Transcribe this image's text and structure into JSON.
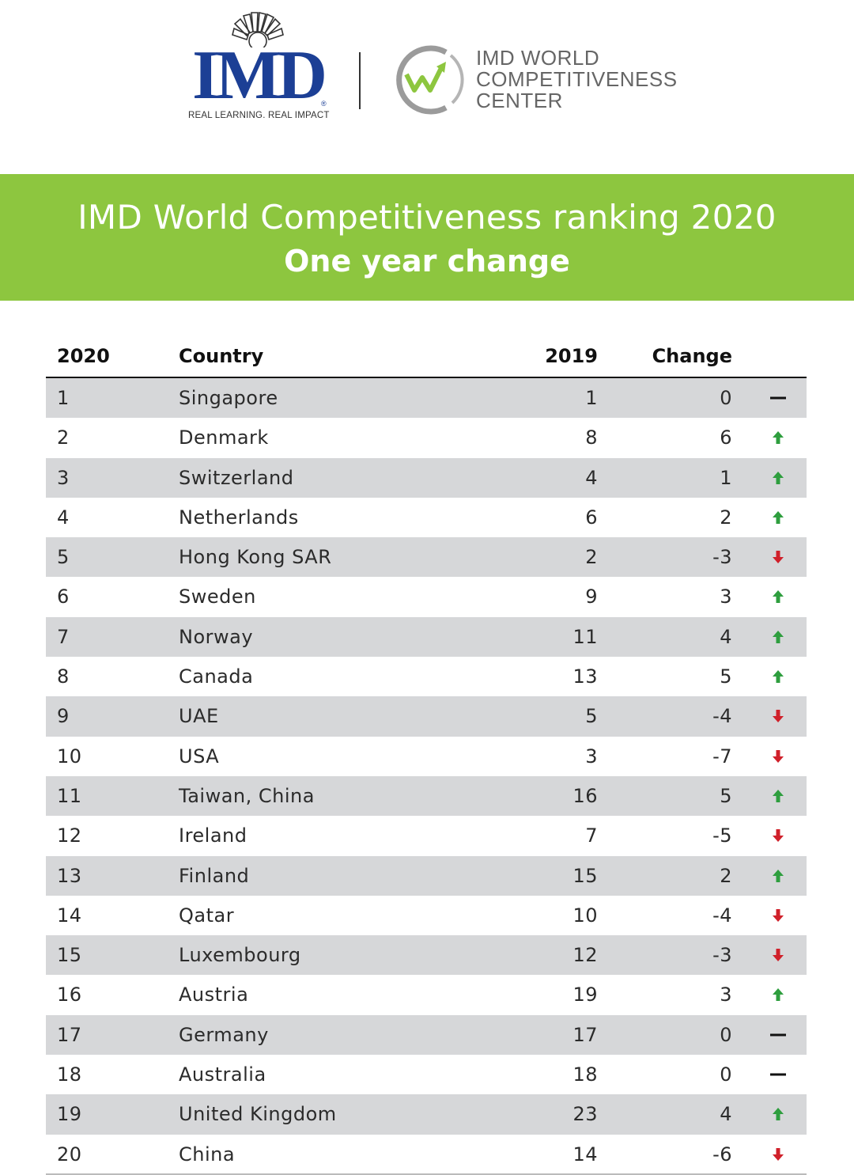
{
  "logos": {
    "imd_wordmark": "IMD",
    "imd_tagline": "REAL LEARNING. REAL IMPACT",
    "wcc_lines": [
      "IMD WORLD",
      "COMPETITIVENESS",
      "CENTER"
    ]
  },
  "banner": {
    "title": "IMD World Competitiveness ranking 2020",
    "subtitle": "One year change",
    "color": "#8dc63f"
  },
  "table": {
    "headers": {
      "rank_2020": "2020",
      "country": "Country",
      "rank_2019": "2019",
      "change": "Change"
    },
    "rows": [
      {
        "rank_2020": "1",
        "country": "Singapore",
        "rank_2019": "1",
        "change": "0",
        "trend": "same"
      },
      {
        "rank_2020": "2",
        "country": "Denmark",
        "rank_2019": "8",
        "change": "6",
        "trend": "up"
      },
      {
        "rank_2020": "3",
        "country": "Switzerland",
        "rank_2019": "4",
        "change": "1",
        "trend": "up"
      },
      {
        "rank_2020": "4",
        "country": "Netherlands",
        "rank_2019": "6",
        "change": "2",
        "trend": "up"
      },
      {
        "rank_2020": "5",
        "country": "Hong Kong SAR",
        "rank_2019": "2",
        "change": "-3",
        "trend": "down"
      },
      {
        "rank_2020": "6",
        "country": "Sweden",
        "rank_2019": "9",
        "change": "3",
        "trend": "up"
      },
      {
        "rank_2020": "7",
        "country": "Norway",
        "rank_2019": "11",
        "change": "4",
        "trend": "up"
      },
      {
        "rank_2020": "8",
        "country": "Canada",
        "rank_2019": "13",
        "change": "5",
        "trend": "up"
      },
      {
        "rank_2020": "9",
        "country": "UAE",
        "rank_2019": "5",
        "change": "-4",
        "trend": "down"
      },
      {
        "rank_2020": "10",
        "country": "USA",
        "rank_2019": "3",
        "change": "-7",
        "trend": "down"
      },
      {
        "rank_2020": "11",
        "country": "Taiwan, China",
        "rank_2019": "16",
        "change": "5",
        "trend": "up"
      },
      {
        "rank_2020": "12",
        "country": "Ireland",
        "rank_2019": "7",
        "change": "-5",
        "trend": "down"
      },
      {
        "rank_2020": "13",
        "country": "Finland",
        "rank_2019": "15",
        "change": "2",
        "trend": "up"
      },
      {
        "rank_2020": "14",
        "country": "Qatar",
        "rank_2019": "10",
        "change": "-4",
        "trend": "down"
      },
      {
        "rank_2020": "15",
        "country": "Luxembourg",
        "rank_2019": "12",
        "change": "-3",
        "trend": "down"
      },
      {
        "rank_2020": "16",
        "country": "Austria",
        "rank_2019": "19",
        "change": "3",
        "trend": "up"
      },
      {
        "rank_2020": "17",
        "country": "Germany",
        "rank_2019": "17",
        "change": "0",
        "trend": "same"
      },
      {
        "rank_2020": "18",
        "country": "Australia",
        "rank_2019": "18",
        "change": "0",
        "trend": "same"
      },
      {
        "rank_2020": "19",
        "country": "United Kingdom",
        "rank_2019": "23",
        "change": "4",
        "trend": "up"
      },
      {
        "rank_2020": "20",
        "country": "China",
        "rank_2019": "14",
        "change": "-6",
        "trend": "down"
      }
    ]
  },
  "colors": {
    "up": "#2e9e3e",
    "down": "#d0202a",
    "same": "#111111",
    "row_shade": "#d6d7d9",
    "imd_blue": "#1c3f95"
  }
}
